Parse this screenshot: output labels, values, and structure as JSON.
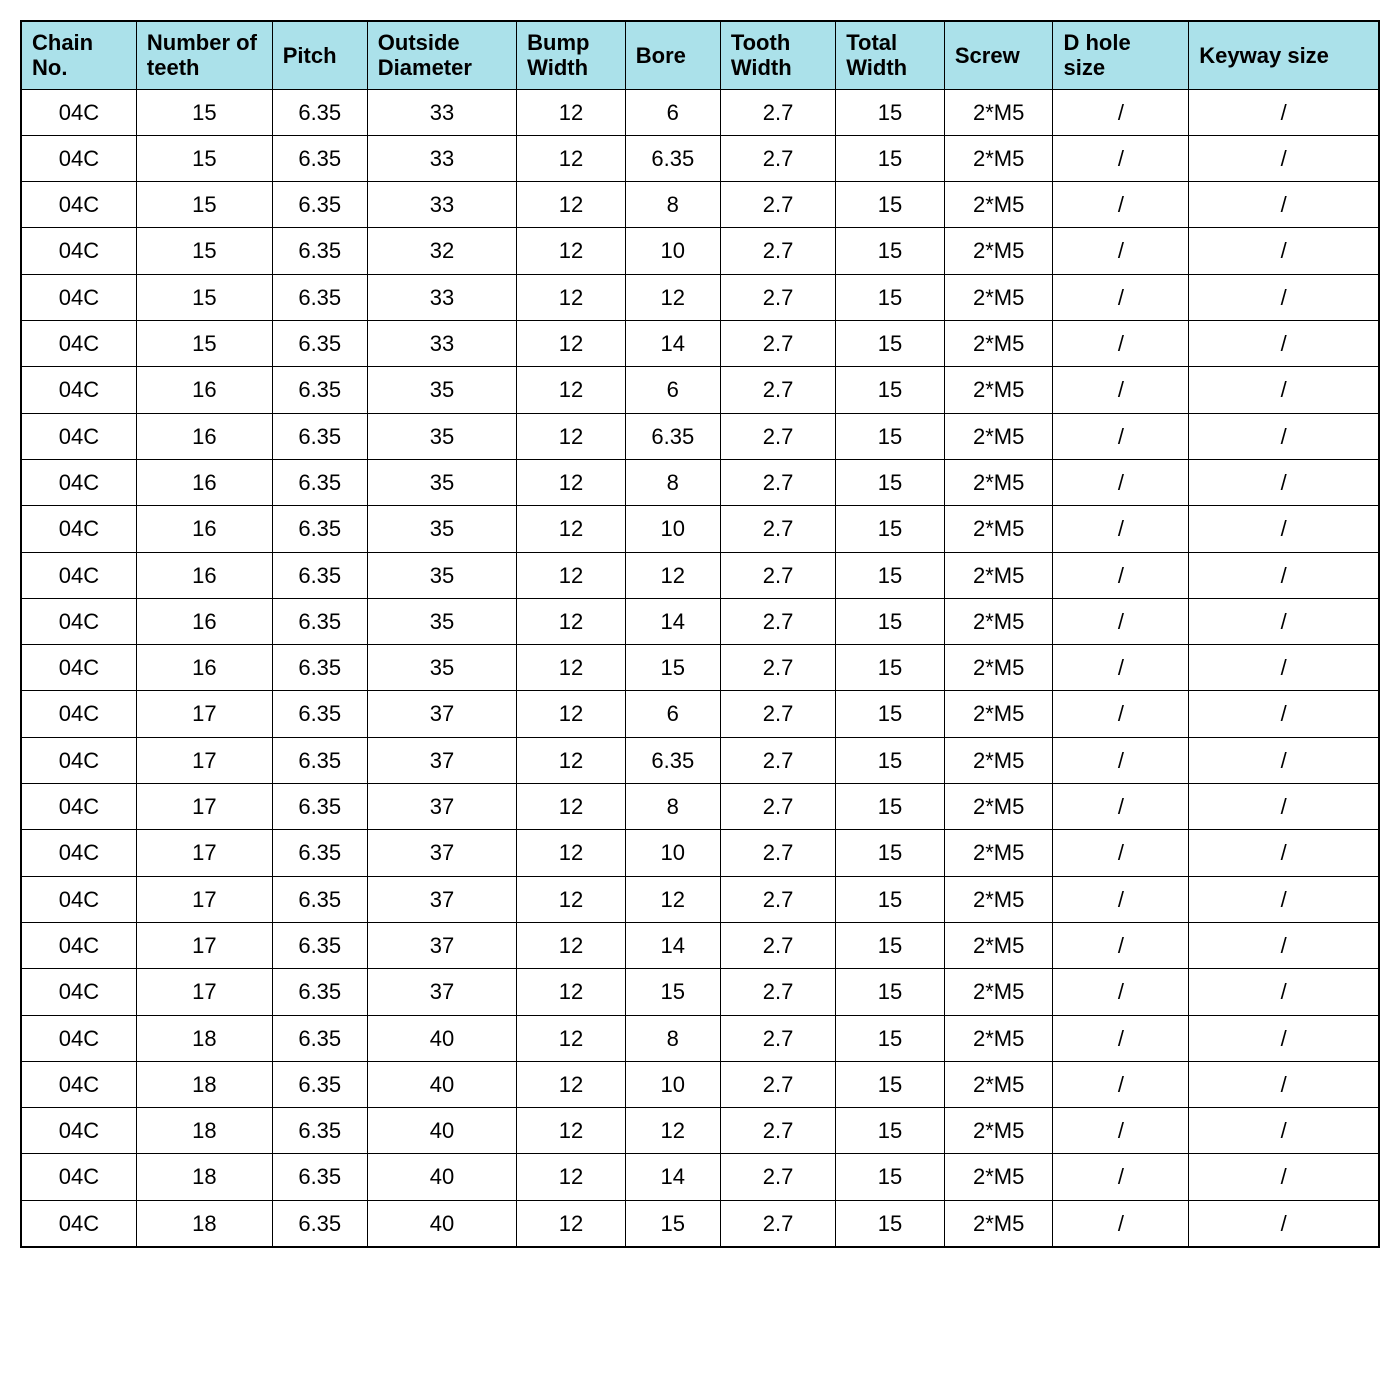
{
  "table": {
    "type": "table",
    "header_bg": "#abe1ea",
    "border_color": "#000000",
    "font_family": "Arial",
    "header_fontsize_pt": 16,
    "body_fontsize_pt": 16,
    "columns": [
      {
        "label": "Chain No.",
        "width_pct": 8.5
      },
      {
        "label": "Number of teeth",
        "width_pct": 10.0
      },
      {
        "label": "Pitch",
        "width_pct": 7.0
      },
      {
        "label": "Outside Diameter",
        "width_pct": 11.0
      },
      {
        "label": "Bump Width",
        "width_pct": 8.0
      },
      {
        "label": "Bore",
        "width_pct": 7.0
      },
      {
        "label": "Tooth Width",
        "width_pct": 8.5
      },
      {
        "label": "Total Width",
        "width_pct": 8.0
      },
      {
        "label": "Screw",
        "width_pct": 8.0
      },
      {
        "label": "D hole size",
        "width_pct": 10.0
      },
      {
        "label": "Keyway size",
        "width_pct": 14.0
      }
    ],
    "rows": [
      [
        "04C",
        "15",
        "6.35",
        "33",
        "12",
        "6",
        "2.7",
        "15",
        "2*M5",
        "/",
        "/"
      ],
      [
        "04C",
        "15",
        "6.35",
        "33",
        "12",
        "6.35",
        "2.7",
        "15",
        "2*M5",
        "/",
        "/"
      ],
      [
        "04C",
        "15",
        "6.35",
        "33",
        "12",
        "8",
        "2.7",
        "15",
        "2*M5",
        "/",
        "/"
      ],
      [
        "04C",
        "15",
        "6.35",
        "32",
        "12",
        "10",
        "2.7",
        "15",
        "2*M5",
        "/",
        "/"
      ],
      [
        "04C",
        "15",
        "6.35",
        "33",
        "12",
        "12",
        "2.7",
        "15",
        "2*M5",
        "/",
        "/"
      ],
      [
        "04C",
        "15",
        "6.35",
        "33",
        "12",
        "14",
        "2.7",
        "15",
        "2*M5",
        "/",
        "/"
      ],
      [
        "04C",
        "16",
        "6.35",
        "35",
        "12",
        "6",
        "2.7",
        "15",
        "2*M5",
        "/",
        "/"
      ],
      [
        "04C",
        "16",
        "6.35",
        "35",
        "12",
        "6.35",
        "2.7",
        "15",
        "2*M5",
        "/",
        "/"
      ],
      [
        "04C",
        "16",
        "6.35",
        "35",
        "12",
        "8",
        "2.7",
        "15",
        "2*M5",
        "/",
        "/"
      ],
      [
        "04C",
        "16",
        "6.35",
        "35",
        "12",
        "10",
        "2.7",
        "15",
        "2*M5",
        "/",
        "/"
      ],
      [
        "04C",
        "16",
        "6.35",
        "35",
        "12",
        "12",
        "2.7",
        "15",
        "2*M5",
        "/",
        "/"
      ],
      [
        "04C",
        "16",
        "6.35",
        "35",
        "12",
        "14",
        "2.7",
        "15",
        "2*M5",
        "/",
        "/"
      ],
      [
        "04C",
        "16",
        "6.35",
        "35",
        "12",
        "15",
        "2.7",
        "15",
        "2*M5",
        "/",
        "/"
      ],
      [
        "04C",
        "17",
        "6.35",
        "37",
        "12",
        "6",
        "2.7",
        "15",
        "2*M5",
        "/",
        "/"
      ],
      [
        "04C",
        "17",
        "6.35",
        "37",
        "12",
        "6.35",
        "2.7",
        "15",
        "2*M5",
        "/",
        "/"
      ],
      [
        "04C",
        "17",
        "6.35",
        "37",
        "12",
        "8",
        "2.7",
        "15",
        "2*M5",
        "/",
        "/"
      ],
      [
        "04C",
        "17",
        "6.35",
        "37",
        "12",
        "10",
        "2.7",
        "15",
        "2*M5",
        "/",
        "/"
      ],
      [
        "04C",
        "17",
        "6.35",
        "37",
        "12",
        "12",
        "2.7",
        "15",
        "2*M5",
        "/",
        "/"
      ],
      [
        "04C",
        "17",
        "6.35",
        "37",
        "12",
        "14",
        "2.7",
        "15",
        "2*M5",
        "/",
        "/"
      ],
      [
        "04C",
        "17",
        "6.35",
        "37",
        "12",
        "15",
        "2.7",
        "15",
        "2*M5",
        "/",
        "/"
      ],
      [
        "04C",
        "18",
        "6.35",
        "40",
        "12",
        "8",
        "2.7",
        "15",
        "2*M5",
        "/",
        "/"
      ],
      [
        "04C",
        "18",
        "6.35",
        "40",
        "12",
        "10",
        "2.7",
        "15",
        "2*M5",
        "/",
        "/"
      ],
      [
        "04C",
        "18",
        "6.35",
        "40",
        "12",
        "12",
        "2.7",
        "15",
        "2*M5",
        "/",
        "/"
      ],
      [
        "04C",
        "18",
        "6.35",
        "40",
        "12",
        "14",
        "2.7",
        "15",
        "2*M5",
        "/",
        "/"
      ],
      [
        "04C",
        "18",
        "6.35",
        "40",
        "12",
        "15",
        "2.7",
        "15",
        "2*M5",
        "/",
        "/"
      ]
    ]
  }
}
